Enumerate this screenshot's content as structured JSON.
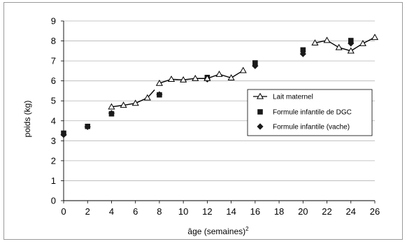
{
  "chart_data": {
    "type": "scatter",
    "title": "",
    "xlabel": "âge (semaines)",
    "xlabel_superscript": "2",
    "ylabel": "poids (kg)",
    "xlim": [
      0,
      26
    ],
    "ylim": [
      0,
      9
    ],
    "xticks": [
      "0",
      "2",
      "4",
      "6",
      "8",
      "10",
      "12",
      "14",
      "16",
      "18",
      "20",
      "22",
      "24",
      "26"
    ],
    "yticks": [
      "0",
      "1",
      "2",
      "3",
      "4",
      "5",
      "6",
      "7",
      "8",
      "9"
    ],
    "grid": "horizontal",
    "legend_position": "right",
    "series": [
      {
        "name": "Lait maternel",
        "style": "line-triangle",
        "color": "#000000",
        "segments": [
          {
            "x": [
              4,
              5,
              6,
              7,
              7.6
            ],
            "y": [
              4.7,
              4.78,
              4.88,
              5.15,
              5.55
            ]
          },
          {
            "x": [
              8,
              9,
              10,
              11,
              12,
              13,
              14,
              15
            ],
            "y": [
              5.88,
              6.08,
              6.05,
              6.12,
              6.12,
              6.33,
              6.15,
              6.52
            ]
          },
          {
            "x": [
              21,
              22,
              23,
              24,
              25,
              26
            ],
            "y": [
              7.9,
              8.03,
              7.67,
              7.5,
              7.87,
              8.18
            ]
          }
        ]
      },
      {
        "name": "Formule infantile de DGC",
        "style": "square",
        "color": "#000000",
        "x": [
          0,
          2,
          4,
          8,
          12,
          16,
          20,
          24
        ],
        "y": [
          3.38,
          3.72,
          4.35,
          5.3,
          6.17,
          6.9,
          7.55,
          8.02
        ]
      },
      {
        "name": "Formule infantile (vache)",
        "style": "diamond",
        "color": "#000000",
        "x": [
          0,
          2,
          4,
          8,
          12,
          16,
          20,
          24
        ],
        "y": [
          3.3,
          3.7,
          4.38,
          5.32,
          6.08,
          6.75,
          7.35,
          7.88
        ]
      }
    ]
  }
}
